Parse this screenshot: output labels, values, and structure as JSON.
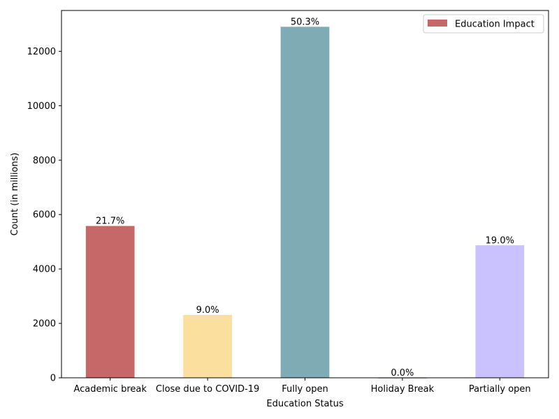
{
  "chart_data": {
    "type": "bar",
    "categories": [
      "Academic break",
      "Close due to COVID-19",
      "Fully open",
      "Holiday Break",
      "Partially open"
    ],
    "values": [
      5580,
      2310,
      12900,
      5,
      4870
    ],
    "percent_labels": [
      "21.7%",
      "9.0%",
      "50.3%",
      "0.0%",
      "19.0%"
    ],
    "colors": [
      "#c56867",
      "#fadf9f",
      "#7eabb4",
      "#8c9c7e",
      "#cac2fe"
    ],
    "title": "",
    "xlabel": "Education Status",
    "ylabel": "Count (in millions)",
    "ylim": [
      0,
      13500
    ],
    "yticks": [
      0,
      2000,
      4000,
      6000,
      8000,
      10000,
      12000
    ],
    "grid": false,
    "legend": {
      "position": "top-right",
      "entries": [
        {
          "label": "Education Impact",
          "color": "#c56867"
        }
      ]
    }
  }
}
